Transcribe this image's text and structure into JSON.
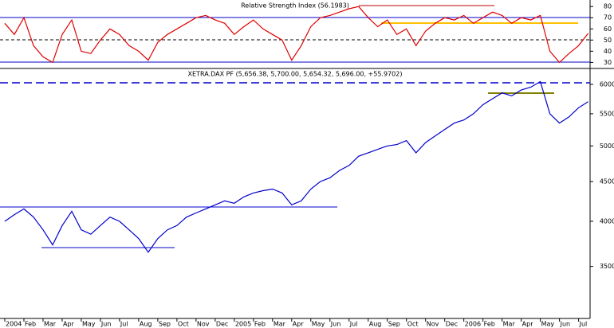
{
  "chart_data": [
    {
      "type": "line",
      "title": "Relative Strength Index (56.1983)",
      "x": [
        0,
        0.5,
        1,
        1.5,
        2,
        2.5,
        3,
        3.5,
        4,
        4.5,
        5,
        5.5,
        6,
        6.5,
        7,
        7.5,
        8,
        8.5,
        9,
        9.5,
        10,
        10.5,
        11,
        11.5,
        12,
        12.5,
        13,
        13.5,
        14,
        14.5,
        15,
        15.5,
        16,
        16.5,
        17,
        17.5,
        18,
        18.5,
        19,
        19.5,
        20,
        20.5,
        21,
        21.5,
        22,
        22.5,
        23,
        23.5,
        24,
        24.5,
        25,
        25.5,
        26,
        26.5,
        27,
        27.5,
        28,
        28.5,
        29,
        29.5,
        30,
        30.5
      ],
      "series": [
        {
          "color": "#e00000",
          "values": [
            65,
            55,
            70,
            45,
            35,
            30,
            55,
            68,
            40,
            38,
            50,
            60,
            55,
            45,
            40,
            32,
            48,
            55,
            60,
            65,
            70,
            72,
            68,
            65,
            55,
            62,
            68,
            60,
            55,
            50,
            32,
            45,
            62,
            70,
            72,
            75,
            78,
            80,
            70,
            62,
            68,
            55,
            60,
            45,
            58,
            65,
            70,
            68,
            72,
            65,
            70,
            75,
            72,
            65,
            70,
            68,
            72,
            40,
            30,
            38,
            45,
            56
          ]
        }
      ],
      "xlim": [
        -0.25,
        30.6
      ],
      "ylim": [
        26,
        83
      ],
      "yticks": [
        30,
        40,
        50,
        60,
        70,
        80
      ]
    },
    {
      "type": "line",
      "title": "XETRA.DAX PF (5,656.38, 5,700.00, 5,654.32, 5,696.00, +55.9702)",
      "log": true,
      "x": [
        0,
        0.5,
        1,
        1.5,
        2,
        2.5,
        3,
        3.5,
        4,
        4.5,
        5,
        5.5,
        6,
        6.5,
        7,
        7.5,
        8,
        8.5,
        9,
        9.5,
        10,
        10.5,
        11,
        11.5,
        12,
        12.5,
        13,
        13.5,
        14,
        14.5,
        15,
        15.5,
        16,
        16.5,
        17,
        17.5,
        18,
        18.5,
        19,
        19.5,
        20,
        20.5,
        21,
        21.5,
        22,
        22.5,
        23,
        23.5,
        24,
        24.5,
        25,
        25.5,
        26,
        26.5,
        27,
        27.5,
        28,
        28.5,
        29,
        29.5,
        30,
        30.5
      ],
      "series": [
        {
          "color": "#0000cc",
          "values": [
            4000,
            4080,
            4150,
            4050,
            3900,
            3730,
            3950,
            4120,
            3900,
            3850,
            3950,
            4050,
            4000,
            3900,
            3800,
            3650,
            3800,
            3900,
            3950,
            4050,
            4100,
            4150,
            4200,
            4250,
            4220,
            4300,
            4350,
            4380,
            4400,
            4350,
            4200,
            4250,
            4400,
            4500,
            4550,
            4650,
            4720,
            4850,
            4900,
            4950,
            5000,
            5020,
            5080,
            4900,
            5050,
            5150,
            5250,
            5350,
            5400,
            5500,
            5650,
            5750,
            5850,
            5800,
            5900,
            5950,
            6050,
            5500,
            5350,
            5450,
            5600,
            5700
          ]
        }
      ],
      "xlim": [
        -0.25,
        30.6
      ],
      "ylim": [
        3000,
        6260
      ],
      "yticks": [
        3500,
        4000,
        4500,
        5000,
        5500,
        6000
      ],
      "xticks": [
        {
          "value": 0,
          "label": "2004"
        },
        {
          "value": 1,
          "label": "Feb"
        },
        {
          "value": 2,
          "label": "Mar"
        },
        {
          "value": 3,
          "label": "Apr"
        },
        {
          "value": 4,
          "label": "May"
        },
        {
          "value": 5,
          "label": "Jun"
        },
        {
          "value": 6,
          "label": "Jul"
        },
        {
          "value": 7,
          "label": "Aug"
        },
        {
          "value": 8,
          "label": "Sep"
        },
        {
          "value": 9,
          "label": "Oct"
        },
        {
          "value": 10,
          "label": "Nov"
        },
        {
          "value": 11,
          "label": "Dec"
        },
        {
          "value": 12,
          "label": "2005"
        },
        {
          "value": 13,
          "label": "Feb"
        },
        {
          "value": 14,
          "label": "Mar"
        },
        {
          "value": 15,
          "label": "Apr"
        },
        {
          "value": 16,
          "label": "May"
        },
        {
          "value": 17,
          "label": "Jun"
        },
        {
          "value": 18,
          "label": "Jul"
        },
        {
          "value": 19,
          "label": "Aug"
        },
        {
          "value": 20,
          "label": "Sep"
        },
        {
          "value": 21,
          "label": "Oct"
        },
        {
          "value": 22,
          "label": "Nov"
        },
        {
          "value": 23,
          "label": "Dec"
        },
        {
          "value": 24,
          "label": "2006"
        },
        {
          "value": 25,
          "label": "Feb"
        },
        {
          "value": 26,
          "label": "Mar"
        },
        {
          "value": 27,
          "label": "Apr"
        },
        {
          "value": 28,
          "label": "May"
        },
        {
          "value": 29,
          "label": "Jun"
        },
        {
          "value": 30,
          "label": "Jul"
        }
      ]
    }
  ]
}
